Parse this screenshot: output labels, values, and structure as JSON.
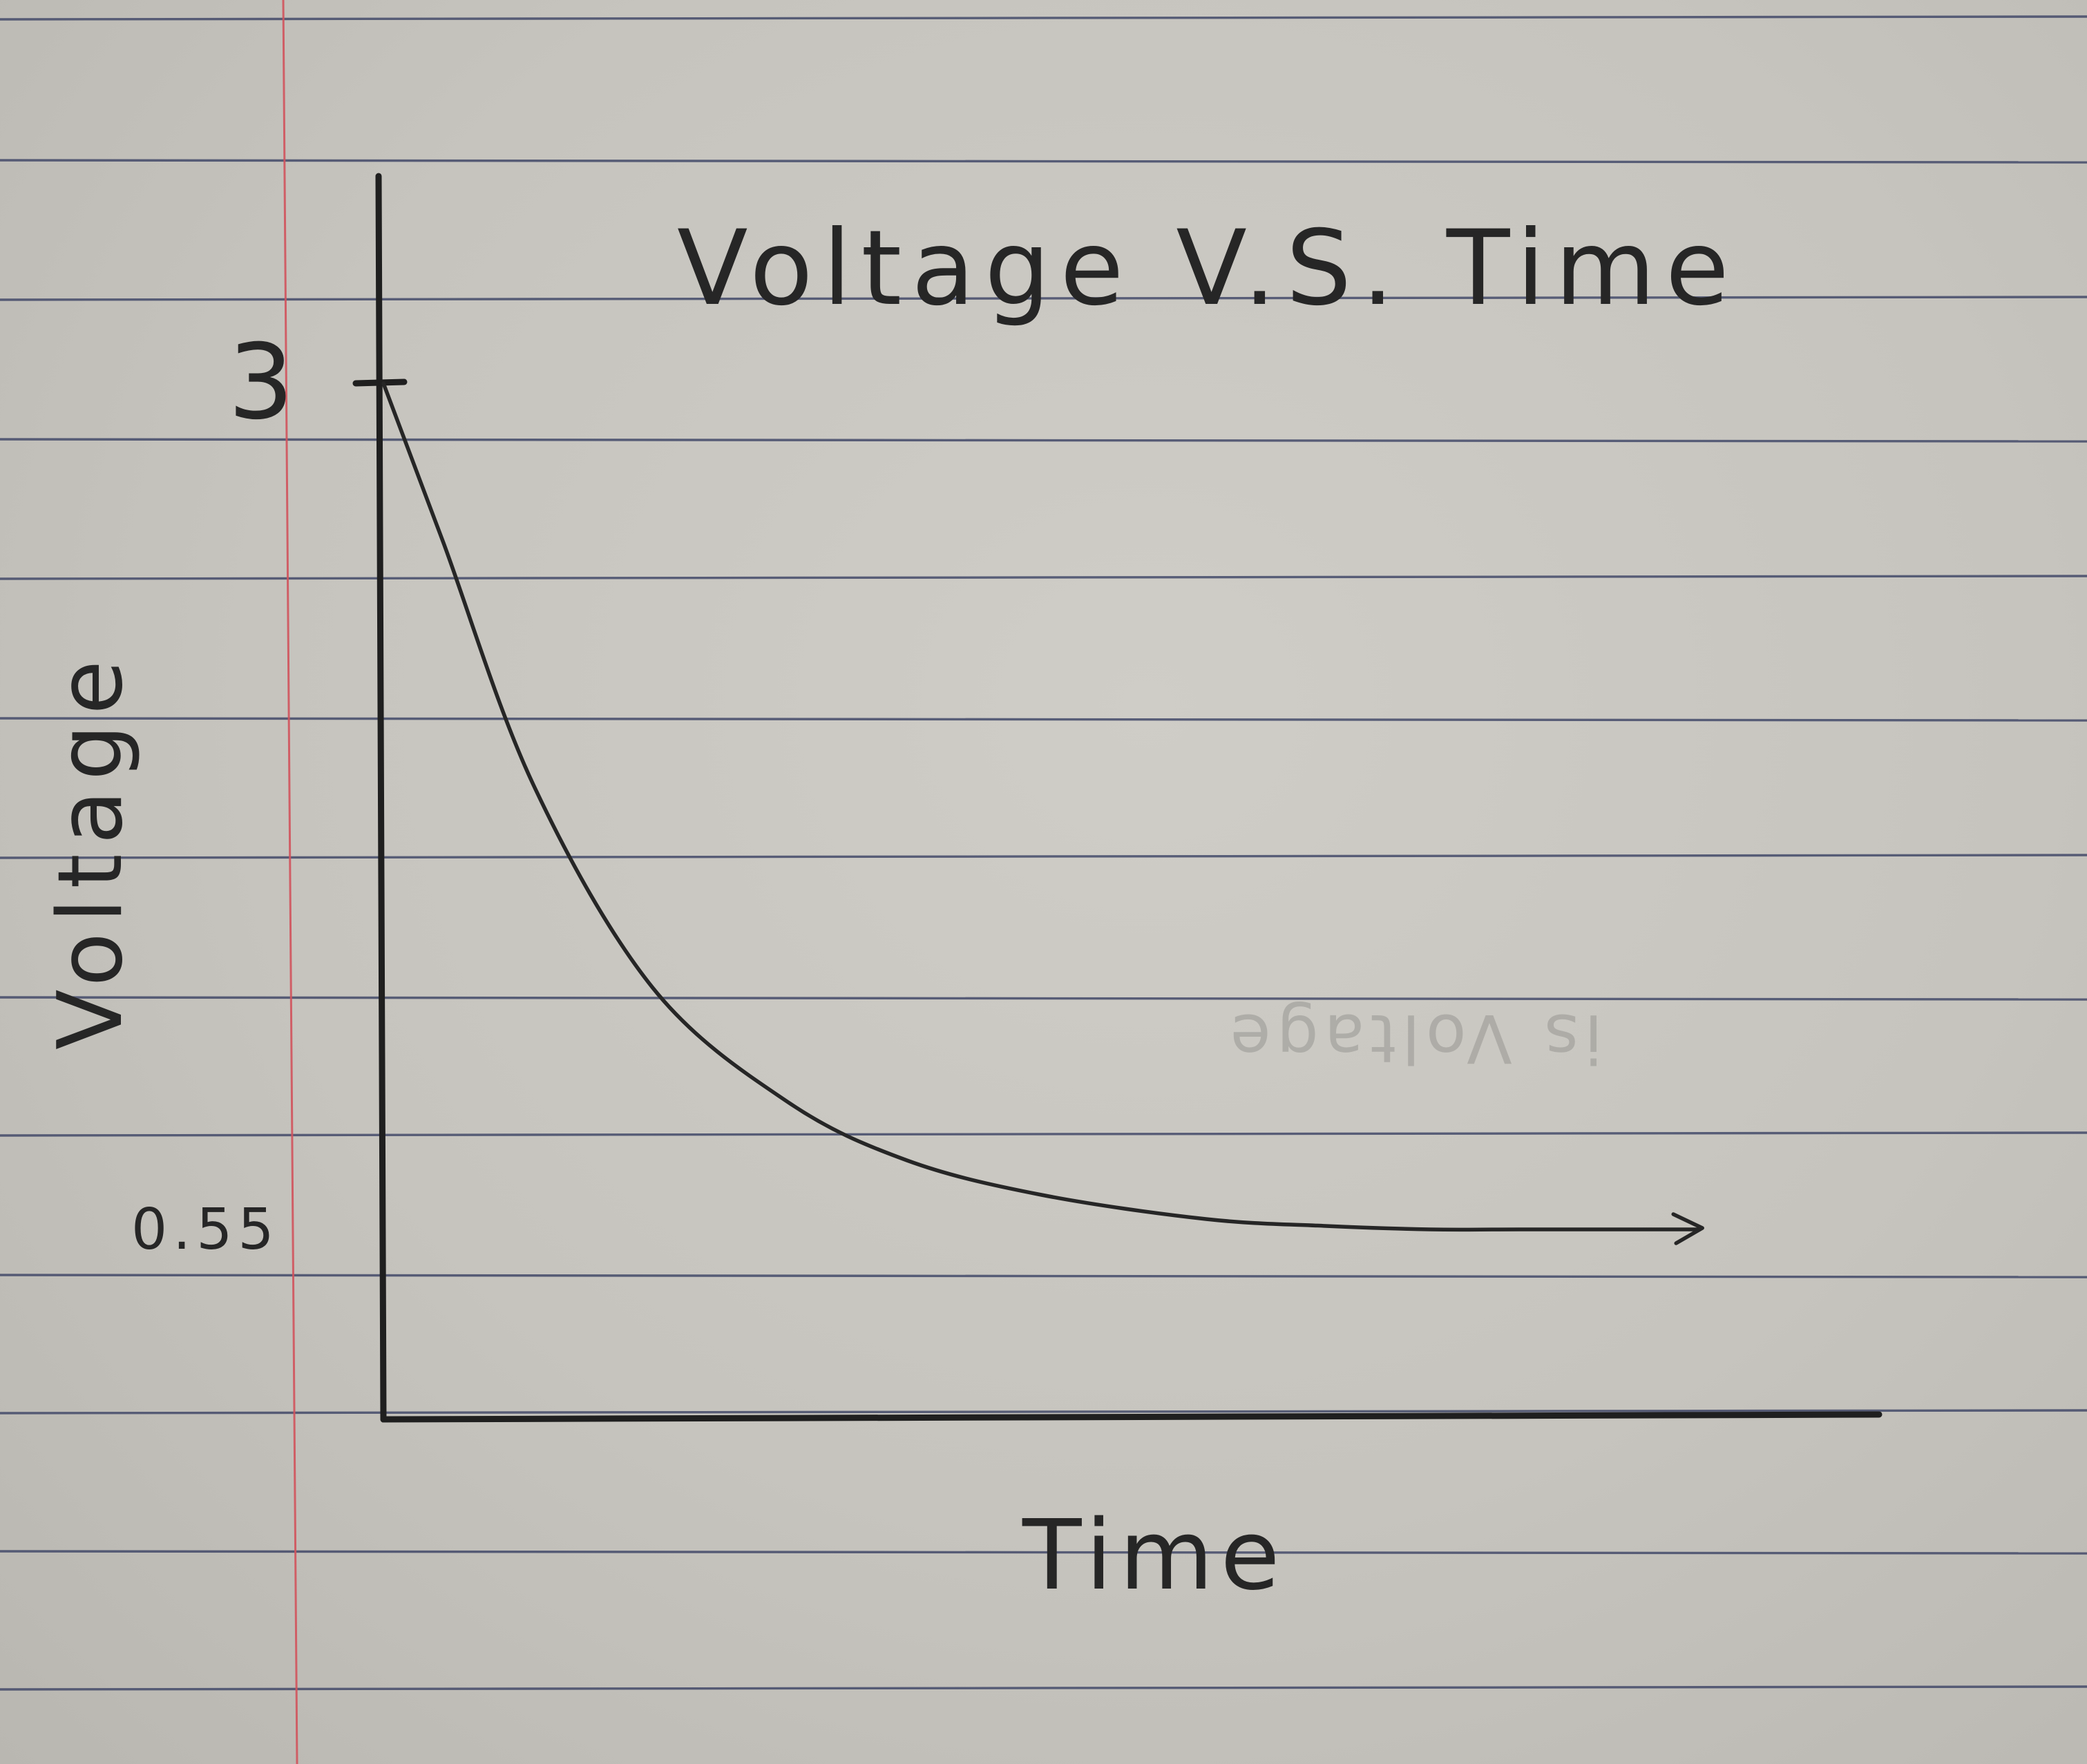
{
  "chart_data": {
    "type": "line",
    "title": "Voltage V.S. Time",
    "xlabel": "Time",
    "ylabel": "Voltage",
    "y_ticks": [
      {
        "value": 3,
        "label": "3"
      },
      {
        "value": 0.55,
        "label": "0.55"
      }
    ],
    "ylim": [
      0,
      3.6
    ],
    "xlim": [
      0,
      1
    ],
    "grid": false,
    "series": [
      {
        "x": [
          0,
          0.04,
          0.1,
          0.18,
          0.27,
          0.35,
          0.44,
          0.55,
          0.63,
          0.7,
          0.76,
          0.88
        ],
        "y": [
          3,
          2.54,
          1.84,
          1.25,
          0.92,
          0.75,
          0.65,
          0.58,
          0.56,
          0.55,
          0.55,
          0.55
        ],
        "end_marker": "arrow"
      }
    ],
    "colors": {
      "ink": "#262626",
      "rule_lines": "#3e4566",
      "margin_line": "#d2545d",
      "paper": "#c6c4be"
    }
  },
  "bleed_through_text": "is Voltage"
}
